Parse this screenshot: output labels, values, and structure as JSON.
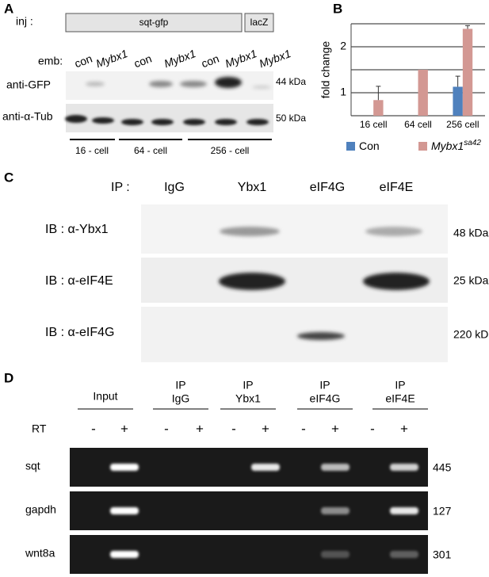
{
  "panel_labels": [
    "A",
    "B",
    "C",
    "D"
  ],
  "panel_a": {
    "inj_label": "inj :",
    "constructs": [
      "sqt-gfp",
      "lacZ"
    ],
    "emb_label": "emb:",
    "lanes": [
      "con",
      "Mybx1",
      "con",
      "Mybx1",
      "con",
      "Mybx1",
      "Mybx1"
    ],
    "blots": [
      {
        "label": "anti-GFP",
        "size": "44 kDa"
      },
      {
        "label": "anti-α-Tub",
        "size": "50 kDa"
      }
    ],
    "stages": [
      "16 - cell",
      "64 - cell",
      "256 - cell"
    ]
  },
  "chart_data": {
    "type": "bar",
    "y_label": "fold change",
    "categories": [
      "16 cell",
      "64 cell",
      "256 cell"
    ],
    "series": [
      {
        "name": "Con",
        "color": "#4f81bd",
        "values": [
          null,
          null,
          1.13
        ],
        "errors": [
          null,
          null,
          0.23
        ]
      },
      {
        "name": "Mybx1",
        "name_superscript": "sa42",
        "color": "#d39893",
        "values": [
          0.84,
          1.5,
          2.39
        ],
        "errors": [
          0.3,
          null,
          0.07
        ]
      }
    ],
    "ylim": [
      0.5,
      2.5
    ],
    "yticks": [
      1,
      2
    ],
    "minor_gridlines": [
      0.5,
      1.5,
      2.5
    ],
    "grid": true
  },
  "panel_c": {
    "ip_label": "IP :",
    "columns": [
      "IgG",
      "Ybx1",
      "eIF4G",
      "eIF4E"
    ],
    "blots": [
      {
        "label": "IB : α-Ybx1",
        "size": "48 kDa"
      },
      {
        "label": "IB : α-eIF4E",
        "size": "25 kDa"
      },
      {
        "label": "IB : α-eIF4G",
        "size": "220 kDa"
      }
    ]
  },
  "panel_d": {
    "groups": [
      [
        "Input"
      ],
      [
        "IP",
        "IgG"
      ],
      [
        "IP",
        "Ybx1"
      ],
      [
        "IP",
        "eIF4G"
      ],
      [
        "IP",
        "eIF4E"
      ]
    ],
    "rt_label": "RT",
    "signs": [
      "-",
      "+",
      "-",
      "+",
      "-",
      "+",
      "-",
      "+",
      "-",
      "+"
    ],
    "genes": [
      {
        "label": "sqt",
        "size": "445"
      },
      {
        "label": "gapdh",
        "size": "127"
      },
      {
        "label": "wnt8a",
        "size": "301"
      }
    ]
  }
}
